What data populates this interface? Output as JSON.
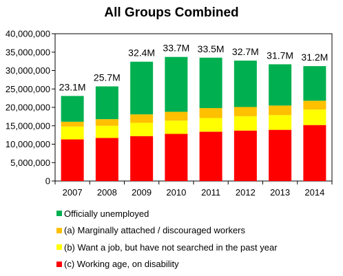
{
  "chart_data": {
    "type": "bar",
    "stacked": true,
    "title": "All Groups Combined",
    "categories": [
      "2007",
      "2008",
      "2009",
      "2010",
      "2011",
      "2012",
      "2013",
      "2014"
    ],
    "ylim": [
      0,
      40000000
    ],
    "yticks": [
      0,
      5000000,
      10000000,
      15000000,
      20000000,
      25000000,
      30000000,
      35000000,
      40000000
    ],
    "ytick_labels": [
      "0",
      "5,000,000",
      "10,000,000",
      "15,000,000",
      "20,000,000",
      "25,000,000",
      "30,000,000",
      "35,000,000",
      "40,000,000"
    ],
    "grid": false,
    "legend_position": "bottom",
    "total_labels": [
      "23.1M",
      "25.7M",
      "32.4M",
      "33.7M",
      "33.5M",
      "32.7M",
      "31.7M",
      "31.2M"
    ],
    "series": [
      {
        "name": "(c) Working age, on disability",
        "color": "#ff0000",
        "values": [
          11300000,
          11700000,
          12200000,
          12800000,
          13400000,
          13700000,
          13900000,
          15200000
        ]
      },
      {
        "name": "(b) Want a job, but have not searched in the past year",
        "color": "#ffff00",
        "values": [
          3500000,
          3300000,
          3600000,
          3600000,
          3700000,
          3900000,
          4000000,
          4200000
        ]
      },
      {
        "name": "(a) Marginally attached / discouraged workers",
        "color": "#ffc000",
        "values": [
          1300000,
          1800000,
          2300000,
          2400000,
          2700000,
          2500000,
          2600000,
          2400000
        ]
      },
      {
        "name": "Officially unemployed",
        "color": "#00b050",
        "values": [
          7000000,
          8900000,
          14300000,
          14900000,
          13700000,
          12600000,
          11200000,
          9400000
        ]
      }
    ],
    "legend_order": [
      3,
      2,
      1,
      0
    ]
  }
}
